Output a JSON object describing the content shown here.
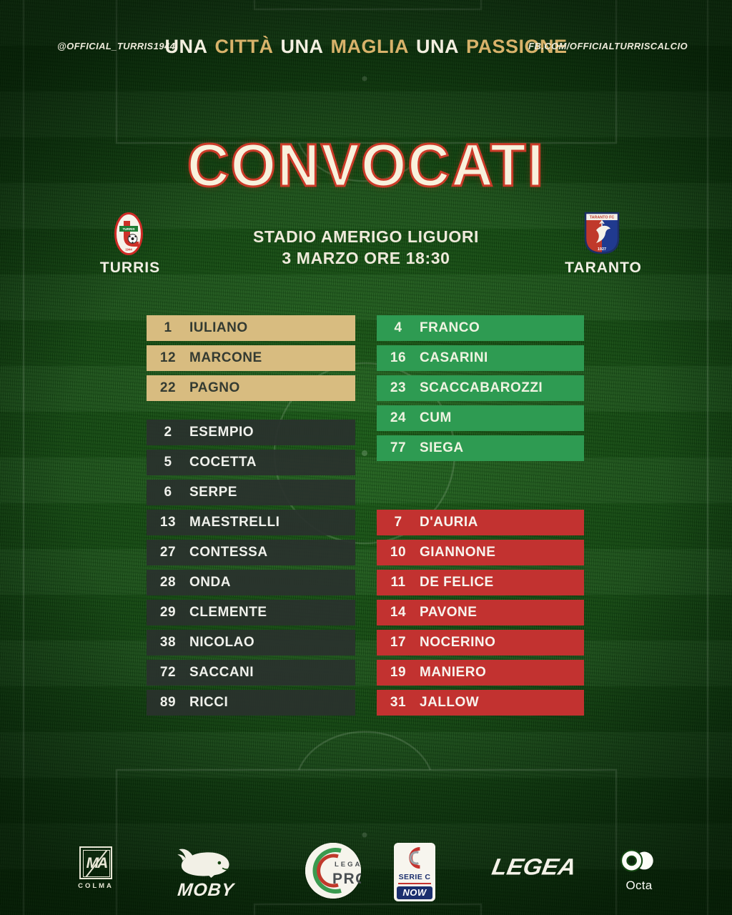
{
  "colors": {
    "background_green": "#144a12",
    "gold_row": "#d8bc80",
    "green_row": "#2e9b52",
    "dark_row": "#2a322d",
    "red_row": "#c23230",
    "accent_gold": "#d8b26a",
    "title_fill": "#f8f1dc",
    "title_stroke": "#cb3a28"
  },
  "header": {
    "left_handle": "@OFFICIAL_TURRIS1944",
    "right_handle": "FB.COM/OFFICIALTURRISCALCIO",
    "slogan": [
      {
        "text": "UNA",
        "gold": false
      },
      {
        "text": "CITTÀ",
        "gold": true
      },
      {
        "text": "UNA",
        "gold": false
      },
      {
        "text": "MAGLIA",
        "gold": true
      },
      {
        "text": "UNA",
        "gold": false
      },
      {
        "text": "PASSIONE",
        "gold": true
      }
    ]
  },
  "title": "CONVOCATI",
  "match": {
    "stadium": "STADIO AMERIGO LIGUORI",
    "date_time": "3 MARZO ORE 18:30",
    "home": {
      "name": "TURRIS",
      "crest_text": "TURRIS",
      "crest_year": "1944"
    },
    "away": {
      "name": "TARANTO",
      "crest_top": "TARANTO FC",
      "crest_year": "1927"
    }
  },
  "squad": {
    "gold": [
      {
        "number": "1",
        "name": "IULIANO"
      },
      {
        "number": "12",
        "name": "MARCONE"
      },
      {
        "number": "22",
        "name": "PAGNO"
      }
    ],
    "dark": [
      {
        "number": "2",
        "name": "ESEMPIO"
      },
      {
        "number": "5",
        "name": "COCETTA"
      },
      {
        "number": "6",
        "name": "SERPE"
      },
      {
        "number": "13",
        "name": "MAESTRELLI"
      },
      {
        "number": "27",
        "name": "CONTESSA"
      },
      {
        "number": "28",
        "name": "ONDA"
      },
      {
        "number": "29",
        "name": "CLEMENTE"
      },
      {
        "number": "38",
        "name": "NICOLAO"
      },
      {
        "number": "72",
        "name": "SACCANI"
      },
      {
        "number": "89",
        "name": "RICCI"
      }
    ],
    "green": [
      {
        "number": "4",
        "name": "FRANCO"
      },
      {
        "number": "16",
        "name": "CASARINI"
      },
      {
        "number": "23",
        "name": "SCACCABAROZZI"
      },
      {
        "number": "24",
        "name": "CUM"
      },
      {
        "number": "77",
        "name": "SIEGA"
      }
    ],
    "red": [
      {
        "number": "7",
        "name": "D'AURIA"
      },
      {
        "number": "10",
        "name": "GIANNONE"
      },
      {
        "number": "11",
        "name": "DE FELICE"
      },
      {
        "number": "14",
        "name": "PAVONE"
      },
      {
        "number": "17",
        "name": "NOCERINO"
      },
      {
        "number": "19",
        "name": "MANIERO"
      },
      {
        "number": "31",
        "name": "JALLOW"
      }
    ]
  },
  "sponsors": {
    "colma": {
      "monogram": "MA",
      "label": "COLMA"
    },
    "moby": {
      "label": "MOBY"
    },
    "lega_pro": {
      "line1": "LEGA",
      "line2": "PRO"
    },
    "serie_c": {
      "name": "SERIE C",
      "now": "NOW"
    },
    "legea": {
      "label": "LEGEA"
    },
    "octa": {
      "label": "Octa"
    }
  }
}
